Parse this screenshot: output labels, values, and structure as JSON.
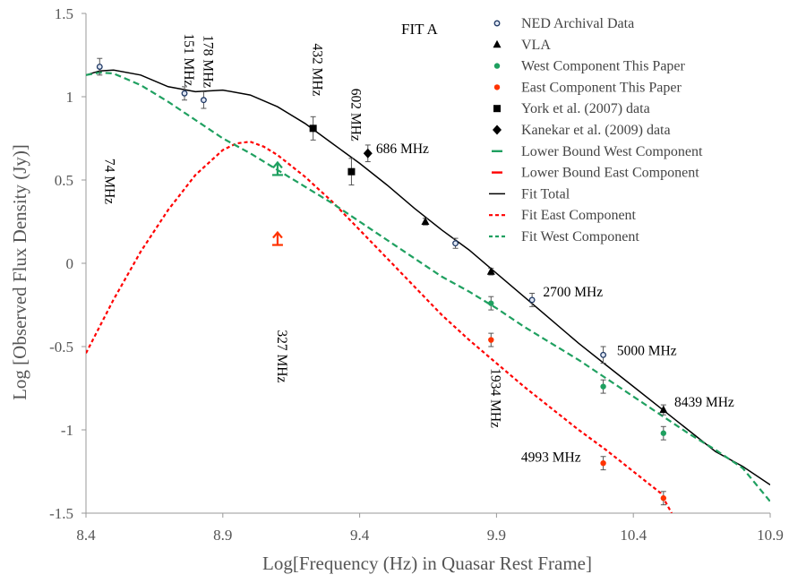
{
  "chart_data": {
    "type": "scatter",
    "title": "FIT A",
    "xlabel": "Log[Frequency (Hz) in Quasar Rest Frame]",
    "ylabel": "Log [Observed Flux Density (Jy)]",
    "xlim": [
      8.4,
      10.9
    ],
    "ylim": [
      -1.5,
      1.5
    ],
    "xticks": [
      "8.4",
      "8.9",
      "9.4",
      "9.9",
      "10.4",
      "10.9"
    ],
    "yticks": [
      "-1.5",
      "-1",
      "-0.5",
      "0",
      "0.5",
      "1",
      "1.5"
    ],
    "grid": false,
    "legend_position": "top-right",
    "series": [
      {
        "name": "NED Archival Data",
        "marker": "open-circle",
        "color": "#1f3864",
        "points": [
          [
            8.45,
            1.18,
            0.05
          ],
          [
            8.76,
            1.02,
            0.04
          ],
          [
            8.83,
            0.98,
            0.05
          ],
          [
            9.75,
            0.12,
            0.03
          ],
          [
            10.03,
            -0.22,
            0.04
          ],
          [
            10.29,
            -0.55,
            0.05
          ]
        ]
      },
      {
        "name": "VLA",
        "marker": "triangle",
        "color": "#000000",
        "points": [
          [
            9.64,
            0.25,
            0.02
          ],
          [
            9.88,
            -0.05,
            0.02
          ],
          [
            10.51,
            -0.88,
            0.03
          ]
        ]
      },
      {
        "name": "West Component This Paper",
        "marker": "dot",
        "color": "#1fa060",
        "points": [
          [
            9.88,
            -0.24,
            0.04
          ],
          [
            10.29,
            -0.74,
            0.04
          ],
          [
            10.51,
            -1.02,
            0.04
          ]
        ]
      },
      {
        "name": "East Component This Paper",
        "marker": "dot",
        "color": "#ff3300",
        "points": [
          [
            9.88,
            -0.46,
            0.04
          ],
          [
            10.29,
            -1.2,
            0.04
          ],
          [
            10.51,
            -1.41,
            0.04
          ]
        ]
      },
      {
        "name": "York et al. (2007) data",
        "marker": "square",
        "color": "#000000",
        "points": [
          [
            9.23,
            0.81,
            0.07
          ],
          [
            9.37,
            0.55,
            0.08
          ]
        ]
      },
      {
        "name": "Kanekar et al. (2009) data",
        "marker": "diamond",
        "color": "#000000",
        "points": [
          [
            9.43,
            0.66,
            0.05
          ]
        ]
      },
      {
        "name": "Lower Bound West Component",
        "marker": "arrow-up",
        "color": "#1fa060",
        "points": [
          [
            9.1,
            0.53
          ]
        ]
      },
      {
        "name": "Lower Bound East Component",
        "marker": "arrow-up",
        "color": "#ff3300",
        "points": [
          [
            9.1,
            0.11
          ]
        ]
      },
      {
        "name": "Fit Total",
        "line": "solid",
        "color": "#000000",
        "x": [
          8.4,
          8.45,
          8.5,
          8.6,
          8.7,
          8.8,
          8.9,
          9.0,
          9.1,
          9.2,
          9.3,
          9.4,
          9.5,
          9.6,
          9.7,
          9.8,
          9.9,
          10.0,
          10.1,
          10.2,
          10.3,
          10.4,
          10.5,
          10.6,
          10.7,
          10.8,
          10.9
        ],
        "y": [
          1.13,
          1.155,
          1.16,
          1.13,
          1.06,
          1.03,
          1.04,
          1.01,
          0.94,
          0.84,
          0.72,
          0.6,
          0.47,
          0.33,
          0.2,
          0.08,
          -0.06,
          -0.2,
          -0.34,
          -0.48,
          -0.61,
          -0.74,
          -0.87,
          -1.0,
          -1.13,
          -1.22,
          -1.33
        ]
      },
      {
        "name": "Fit East Component",
        "line": "dashed",
        "color": "#ff0000",
        "x": [
          8.4,
          8.5,
          8.6,
          8.7,
          8.8,
          8.9,
          8.95,
          9.0,
          9.05,
          9.1,
          9.2,
          9.3,
          9.4,
          9.5,
          9.6,
          9.7,
          9.8,
          9.9,
          10.0,
          10.1,
          10.2,
          10.3,
          10.4,
          10.5,
          10.54
        ],
        "y": [
          -0.54,
          -0.22,
          0.07,
          0.32,
          0.53,
          0.68,
          0.72,
          0.73,
          0.7,
          0.65,
          0.52,
          0.37,
          0.2,
          0.03,
          -0.14,
          -0.31,
          -0.46,
          -0.6,
          -0.74,
          -0.87,
          -1.0,
          -1.12,
          -1.25,
          -1.38,
          -1.5
        ]
      },
      {
        "name": "Fit West Component",
        "line": "dashed",
        "color": "#1fa060",
        "x": [
          8.4,
          8.45,
          8.5,
          8.6,
          8.7,
          8.8,
          8.9,
          9.0,
          9.1,
          9.2,
          9.3,
          9.4,
          9.5,
          9.6,
          9.7,
          9.8,
          9.9,
          10.0,
          10.1,
          10.2,
          10.3,
          10.4,
          10.5,
          10.6,
          10.7,
          10.8,
          10.9
        ],
        "y": [
          1.13,
          1.145,
          1.14,
          1.07,
          0.97,
          0.86,
          0.75,
          0.66,
          0.56,
          0.46,
          0.36,
          0.25,
          0.14,
          0.03,
          -0.08,
          -0.17,
          -0.27,
          -0.38,
          -0.48,
          -0.58,
          -0.69,
          -0.8,
          -0.91,
          -1.02,
          -1.12,
          -1.23,
          -1.43
        ]
      }
    ],
    "legend_items": [
      {
        "label": "NED Archival Data",
        "symbol": "open-circle",
        "color": "#1f3864"
      },
      {
        "label": "VLA",
        "symbol": "triangle",
        "color": "#000000"
      },
      {
        "label": "West Component This Paper",
        "symbol": "dot",
        "color": "#1fa060"
      },
      {
        "label": "East Component This Paper",
        "symbol": "dot",
        "color": "#ff3300"
      },
      {
        "label": "York et al. (2007) data",
        "symbol": "square",
        "color": "#000000"
      },
      {
        "label": "Kanekar et al. (2009) data",
        "symbol": "diamond",
        "color": "#000000"
      },
      {
        "label": "Lower Bound West Component",
        "symbol": "dash",
        "color": "#1fa060"
      },
      {
        "label": "Lower Bound East Component",
        "symbol": "dash",
        "color": "#ff0000"
      },
      {
        "label": "Fit Total",
        "symbol": "solid-line",
        "color": "#000000"
      },
      {
        "label": "Fit East Component",
        "symbol": "dashed-line",
        "color": "#ff0000"
      },
      {
        "label": "Fit West Component",
        "symbol": "dashed-line",
        "color": "#1fa060"
      }
    ],
    "annotations": [
      {
        "text": "74 MHz",
        "x": 8.47,
        "y": 0.63,
        "vertical": true
      },
      {
        "text": "151 MHz",
        "x": 8.76,
        "y": 1.38,
        "vertical": true
      },
      {
        "text": "178 MHz",
        "x": 8.83,
        "y": 1.37,
        "vertical": true
      },
      {
        "text": "327 MHz",
        "x": 9.1,
        "y": -0.4,
        "vertical": true
      },
      {
        "text": "432 MHz",
        "x": 9.23,
        "y": 1.32,
        "vertical": true
      },
      {
        "text": "602 MHz",
        "x": 9.37,
        "y": 1.05,
        "vertical": true
      },
      {
        "text": "686 MHz",
        "x": 9.46,
        "y": 0.66,
        "vertical": false
      },
      {
        "text": "1934 MHz",
        "x": 9.88,
        "y": -0.63,
        "vertical": true
      },
      {
        "text": "2700 MHz",
        "x": 10.07,
        "y": -0.2,
        "vertical": false
      },
      {
        "text": "4993 MHz",
        "x": 9.99,
        "y": -1.19,
        "vertical": false
      },
      {
        "text": "5000 MHz",
        "x": 10.34,
        "y": -0.55,
        "vertical": false
      },
      {
        "text": "8439 MHz",
        "x": 10.55,
        "y": -0.86,
        "vertical": false
      }
    ]
  }
}
